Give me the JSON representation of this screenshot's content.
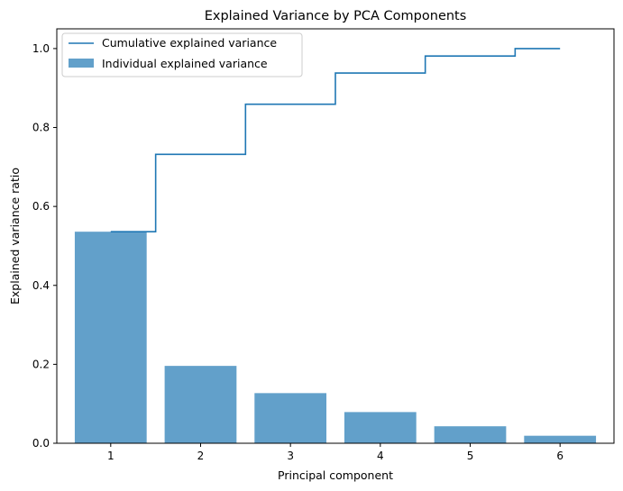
{
  "chart_data": {
    "type": "bar",
    "title": "Explained Variance by PCA Components",
    "xlabel": "Principal component",
    "ylabel": "Explained variance ratio",
    "categories": [
      "1",
      "2",
      "3",
      "4",
      "5",
      "6"
    ],
    "x": [
      1,
      2,
      3,
      4,
      5,
      6
    ],
    "xlim": [
      0.4,
      6.6
    ],
    "ylim": [
      0,
      1.05
    ],
    "yticks": [
      0.0,
      0.2,
      0.4,
      0.6,
      0.8,
      1.0
    ],
    "ytick_labels": [
      "0.0",
      "0.2",
      "0.4",
      "0.6",
      "0.8",
      "1.0"
    ],
    "grid": false,
    "legend_position": "top-left",
    "series": [
      {
        "name": "Individual explained variance",
        "kind": "bar",
        "color": "#1f77b4",
        "opacity": 0.7,
        "values": [
          0.536,
          0.196,
          0.127,
          0.079,
          0.043,
          0.019
        ]
      },
      {
        "name": "Cumulative explained variance",
        "kind": "step",
        "color": "#1f77b4",
        "values": [
          0.536,
          0.732,
          0.859,
          0.938,
          0.981,
          1.0
        ]
      }
    ]
  }
}
